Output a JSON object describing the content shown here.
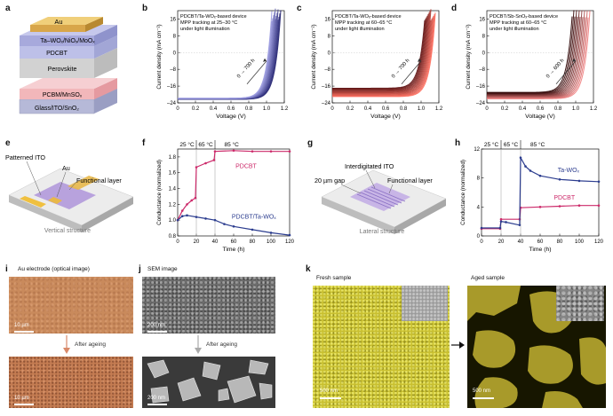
{
  "panels": {
    "a": {
      "label": "a",
      "layers": [
        "Au",
        "Ta–WOₓ/NiOₓ/MoOₓ",
        "PDCBT",
        "Perovskite",
        "PCBM/MnSOₓ",
        "Glass/ITO/SnO₂"
      ]
    },
    "b": {
      "label": "b",
      "annot": [
        "PDCBT/Ta-WOₓ-based device",
        "MPP tracking at 25–30 °C",
        "under light illumination"
      ],
      "arrow_text": "0 → 700 h"
    },
    "c": {
      "label": "c",
      "annot": [
        "PDCBT/Ta-WOₓ-based device",
        "MPP tracking at 60–65 °C",
        "under light illumination"
      ],
      "arrow_text": "0 → 700 h"
    },
    "d": {
      "label": "d",
      "annot": [
        "PDCBT/Sb-SnOₓ-based device",
        "MPP tracking at 60–65 °C",
        "under light illumination"
      ],
      "arrow_text": "0 → 600 h"
    },
    "e": {
      "label": "e",
      "labels": {
        "ito": "Patterned ITO",
        "au": "Au",
        "func": "Functional layer"
      },
      "caption": "Vertical structure"
    },
    "f": {
      "label": "f",
      "temps": [
        "25 °C",
        "65 °C",
        "85 °C"
      ],
      "series_labels": [
        "PDCBT",
        "PDCBT/Ta-WOₓ"
      ]
    },
    "g": {
      "label": "g",
      "labels": {
        "ito": "Interdigitated ITO",
        "gap": "20 µm gap",
        "func": "Functional layer"
      },
      "caption": "Lateral structure"
    },
    "h": {
      "label": "h",
      "temps": [
        "25 °C",
        "65 °C",
        "85 °C"
      ],
      "series_labels": [
        "Ta-WOₓ",
        "PDCBT"
      ]
    },
    "i": {
      "label": "i",
      "title": "Au electrode (optical image)",
      "scale_top": "10 µm",
      "scale_bot": "10 µm",
      "arrow": "After ageing"
    },
    "j": {
      "label": "j",
      "title": "SEM image",
      "scale_top": "200 nm",
      "scale_bot": "200 nm",
      "arrow": "After ageing"
    },
    "k": {
      "label": "k",
      "fresh": "Fresh sample",
      "aged": "Aged sample",
      "scale_left": "500 nm",
      "scale_right": "500 nm"
    }
  },
  "colors": {
    "b": "#3a3aa8",
    "c": "#d8262a",
    "d": "#a51318",
    "pink": "#cc2a6a",
    "navy": "#2c3d8f",
    "gold": "#d8c64a"
  },
  "chart_data": [
    {
      "type": "line",
      "id": "b",
      "title": "",
      "xlabel": "Voltage (V)",
      "ylabel": "Current density (mA cm⁻²)",
      "xlim": [
        0,
        1.2
      ],
      "ylim": [
        -24,
        20
      ],
      "xticks": [
        0,
        0.2,
        0.4,
        0.6,
        0.8,
        1.0,
        1.2
      ],
      "yticks": [
        -24,
        -16,
        -8,
        0,
        8,
        16
      ],
      "xtick_labels": [
        "0",
        "0.2",
        "0.4",
        "0.6",
        "0.8",
        "1.0",
        "1.2"
      ],
      "ytick_labels": [
        "–24",
        "–16",
        "–8",
        "0",
        "8",
        "16"
      ],
      "series": [
        {
          "name": "0 h",
          "jsc": -22.3,
          "voc": 1.12
        },
        {
          "name": "700 h",
          "jsc": -21.8,
          "voc": 1.02
        }
      ]
    },
    {
      "type": "line",
      "id": "c",
      "title": "",
      "xlabel": "Voltage (V)",
      "ylabel": "Current density (mA cm⁻²)",
      "xlim": [
        0,
        1.2
      ],
      "ylim": [
        -24,
        20
      ],
      "xticks": [
        0,
        0.2,
        0.4,
        0.6,
        0.8,
        1.0,
        1.2
      ],
      "yticks": [
        -24,
        -16,
        -8,
        0,
        8,
        16
      ],
      "xtick_labels": [
        "0",
        "0.2",
        "0.4",
        "0.6",
        "0.8",
        "1.0",
        "1.2"
      ],
      "ytick_labels": [
        "–24",
        "–16",
        "–8",
        "0",
        "8",
        "16"
      ],
      "series": [
        {
          "name": "0 h",
          "jsc": -21.0,
          "voc": 1.12
        },
        {
          "name": "700 h",
          "jsc": -17.0,
          "voc": 1.0
        }
      ]
    },
    {
      "type": "line",
      "id": "d",
      "title": "",
      "xlabel": "Voltage (V)",
      "ylabel": "Current density (mA cm⁻²)",
      "xlim": [
        0,
        1.2
      ],
      "ylim": [
        -24,
        20
      ],
      "xticks": [
        0,
        0.2,
        0.4,
        0.6,
        0.8,
        1.0,
        1.2
      ],
      "yticks": [
        -24,
        -16,
        -8,
        0,
        8,
        16
      ],
      "xtick_labels": [
        "0",
        "0.2",
        "0.4",
        "0.6",
        "0.8",
        "1.0",
        "1.2"
      ],
      "ytick_labels": [
        "–24",
        "–16",
        "–8",
        "0",
        "8",
        "16"
      ],
      "series": [
        {
          "name": "0 h",
          "jsc": -22.0,
          "voc": 1.12
        },
        {
          "name": "600 h",
          "jsc": -19.0,
          "voc": 0.92
        }
      ]
    },
    {
      "type": "line",
      "id": "f",
      "title": "",
      "xlabel": "Time (h)",
      "ylabel": "Conductance (normalized)",
      "xlim": [
        0,
        120
      ],
      "ylim": [
        0.8,
        1.9
      ],
      "xticks": [
        0,
        20,
        40,
        60,
        80,
        100,
        120
      ],
      "yticks": [
        0.8,
        1.0,
        1.2,
        1.4,
        1.6,
        1.8
      ],
      "xtick_labels": [
        "0",
        "20",
        "40",
        "60",
        "80",
        "100",
        "120"
      ],
      "ytick_labels": [
        "0.8",
        "1.0",
        "1.2",
        "1.4",
        "1.6",
        "1.8"
      ],
      "dividers": [
        20,
        40
      ],
      "series": [
        {
          "name": "PDCBT",
          "x": [
            0,
            5,
            10,
            15,
            19,
            20,
            30,
            39,
            40,
            60,
            80,
            100,
            120
          ],
          "y": [
            1.0,
            1.12,
            1.2,
            1.25,
            1.28,
            1.67,
            1.72,
            1.76,
            1.87,
            1.88,
            1.87,
            1.87,
            1.87
          ]
        },
        {
          "name": "PDCBT/Ta-WOₓ",
          "x": [
            0,
            5,
            10,
            20,
            30,
            40,
            50,
            60,
            80,
            100,
            120
          ],
          "y": [
            1.0,
            1.05,
            1.06,
            1.04,
            1.02,
            1.0,
            0.95,
            0.92,
            0.88,
            0.84,
            0.81
          ]
        }
      ]
    },
    {
      "type": "line",
      "id": "h",
      "title": "",
      "xlabel": "Time (h)",
      "ylabel": "Conductance (normalized)",
      "xlim": [
        0,
        120
      ],
      "ylim": [
        0,
        12
      ],
      "xticks": [
        0,
        20,
        40,
        60,
        80,
        100,
        120
      ],
      "yticks": [
        0,
        4,
        8,
        12
      ],
      "xtick_labels": [
        "0",
        "20",
        "40",
        "60",
        "80",
        "100",
        "120"
      ],
      "ytick_labels": [
        "0",
        "4",
        "8",
        "12"
      ],
      "dividers": [
        20,
        40
      ],
      "series": [
        {
          "name": "PDCBT",
          "x": [
            0,
            19,
            20,
            39,
            40,
            60,
            80,
            100,
            120
          ],
          "y": [
            1.0,
            1.0,
            2.3,
            2.3,
            3.9,
            4.0,
            4.1,
            4.2,
            4.2
          ]
        },
        {
          "name": "Ta-WOₓ",
          "x": [
            0,
            19,
            20,
            25,
            39,
            40,
            45,
            50,
            60,
            80,
            100,
            120
          ],
          "y": [
            1.1,
            1.1,
            2.0,
            1.9,
            1.5,
            10.8,
            9.6,
            9.0,
            8.3,
            7.8,
            7.6,
            7.5
          ]
        }
      ]
    }
  ]
}
